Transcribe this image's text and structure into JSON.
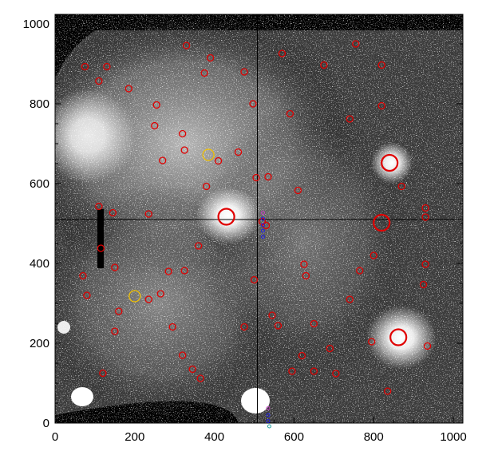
{
  "chart_data": {
    "type": "scatter",
    "title": "",
    "xlabel": "",
    "ylabel": "",
    "xlim": [
      0,
      1024
    ],
    "ylim": [
      0,
      1024
    ],
    "xticks": [
      0,
      200,
      400,
      600,
      800,
      1000
    ],
    "yticks": [
      0,
      200,
      400,
      600,
      800,
      1000
    ],
    "xtick_labels": [
      "0",
      "200",
      "400",
      "600",
      "800",
      "1000"
    ],
    "ytick_labels": [
      "0",
      "200",
      "400",
      "600",
      "800",
      "1000"
    ],
    "background": "astronomical-image-grayscale",
    "crosshair": {
      "x": 508,
      "y": 510
    },
    "series": [
      {
        "marker": "circle",
        "color": "#e00000",
        "points": [
          [
            75,
            893
          ],
          [
            110,
            857
          ],
          [
            130,
            893
          ],
          [
            185,
            838
          ],
          [
            255,
            797
          ],
          [
            330,
            946
          ],
          [
            390,
            915
          ],
          [
            375,
            877
          ],
          [
            475,
            880
          ],
          [
            497,
            800
          ],
          [
            570,
            926
          ],
          [
            675,
            897
          ],
          [
            755,
            950
          ],
          [
            820,
            897
          ],
          [
            590,
            775
          ],
          [
            740,
            762
          ],
          [
            820,
            795
          ],
          [
            250,
            745
          ],
          [
            320,
            725
          ],
          [
            325,
            684
          ],
          [
            460,
            679
          ],
          [
            270,
            658
          ],
          [
            410,
            657
          ],
          [
            505,
            615
          ],
          [
            535,
            617
          ],
          [
            380,
            593
          ],
          [
            610,
            583
          ],
          [
            870,
            593
          ],
          [
            930,
            539
          ],
          [
            930,
            516
          ],
          [
            235,
            524
          ],
          [
            110,
            543
          ],
          [
            145,
            527
          ],
          [
            520,
            505
          ],
          [
            530,
            495
          ],
          [
            360,
            444
          ],
          [
            115,
            438
          ],
          [
            150,
            390
          ],
          [
            285,
            380
          ],
          [
            325,
            382
          ],
          [
            625,
            398
          ],
          [
            630,
            369
          ],
          [
            765,
            382
          ],
          [
            800,
            420
          ],
          [
            930,
            398
          ],
          [
            70,
            369
          ],
          [
            235,
            310
          ],
          [
            265,
            324
          ],
          [
            500,
            359
          ],
          [
            740,
            310
          ],
          [
            925,
            347
          ],
          [
            80,
            320
          ],
          [
            160,
            280
          ],
          [
            150,
            230
          ],
          [
            295,
            241
          ],
          [
            475,
            241
          ],
          [
            560,
            244
          ],
          [
            650,
            249
          ],
          [
            545,
            270
          ],
          [
            320,
            170
          ],
          [
            345,
            135
          ],
          [
            365,
            112
          ],
          [
            620,
            169
          ],
          [
            690,
            187
          ],
          [
            795,
            204
          ],
          [
            935,
            193
          ],
          [
            120,
            125
          ],
          [
            595,
            130
          ],
          [
            650,
            130
          ],
          [
            705,
            124
          ],
          [
            835,
            80
          ]
        ]
      },
      {
        "marker": "circle-large",
        "color": "#e00000",
        "points": [
          [
            430,
            517
          ],
          [
            862,
            215
          ],
          [
            840,
            652
          ],
          [
            820,
            502
          ]
        ]
      },
      {
        "marker": "circle",
        "color": "#f0c000",
        "points": [
          [
            385,
            672
          ],
          [
            200,
            318
          ]
        ]
      },
      {
        "marker": "small-circle",
        "color": "#2020e0",
        "points": [
          [
            522,
            512
          ],
          [
            522,
            496
          ],
          [
            522,
            482
          ],
          [
            522,
            467
          ],
          [
            535,
            20
          ],
          [
            535,
            5
          ]
        ]
      },
      {
        "marker": "small-circle",
        "color": "#c040c0",
        "points": [
          [
            522,
            527
          ],
          [
            535,
            37
          ]
        ]
      },
      {
        "marker": "small-circle",
        "color": "#20a0a0",
        "points": [
          [
            538,
            -8
          ]
        ]
      }
    ]
  }
}
